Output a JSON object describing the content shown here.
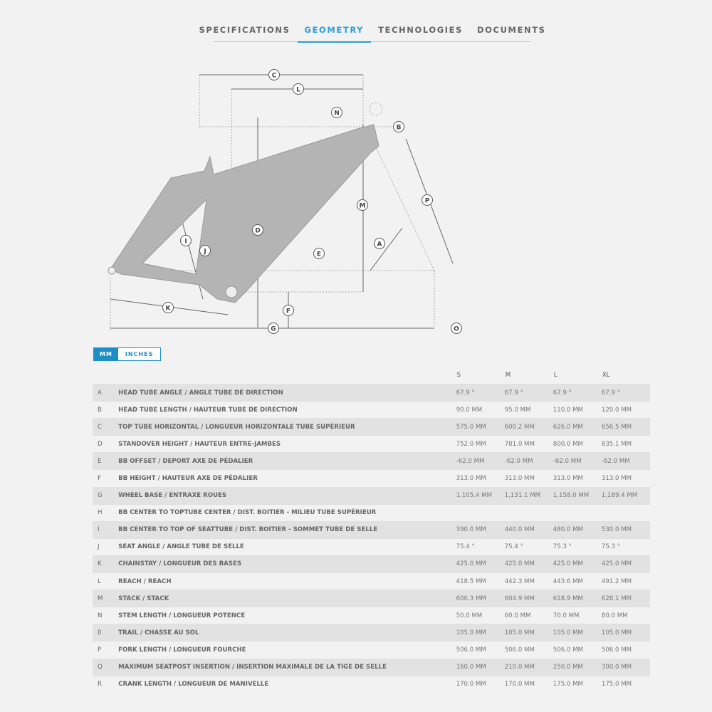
{
  "tabs": [
    {
      "label": "SPECIFICATIONS"
    },
    {
      "label": "GEOMETRY",
      "active": true
    },
    {
      "label": "TECHNOLOGIES"
    },
    {
      "label": "DOCUMENTS"
    }
  ],
  "accent": "#2a9fd6",
  "diagram": {
    "labels": [
      "C",
      "L",
      "N",
      "B",
      "P",
      "M",
      "D",
      "I",
      "J",
      "E",
      "A",
      "K",
      "F",
      "G",
      "O"
    ]
  },
  "units": {
    "mm": "MM",
    "inches": "INCHES",
    "selected": "MM"
  },
  "table": {
    "sizes": [
      "S",
      "M",
      "L",
      "XL"
    ],
    "rows": [
      {
        "letter": "A",
        "name": "HEAD TUBE ANGLE / ANGLE TUBE DE DIRECTION",
        "values": [
          "67.9 °",
          "67.9 °",
          "67.9 °",
          "67.9 °"
        ]
      },
      {
        "letter": "B",
        "name": "HEAD TUBE LENGTH / HAUTEUR TUBE DE DIRECTION",
        "values": [
          "90.0 MM",
          "95.0 MM",
          "110.0 MM",
          "120.0 MM"
        ]
      },
      {
        "letter": "C",
        "name": "TOP TUBE HORIZONTAL / LONGUEUR HORIZONTALE TUBE SUPÉRIEUR",
        "values": [
          "575.0 MM",
          "600.2 MM",
          "626.0 MM",
          "656.5 MM"
        ]
      },
      {
        "letter": "D",
        "name": "STANDOVER HEIGHT / HAUTEUR ENTRE-JAMBES",
        "values": [
          "752.0 MM",
          "781.0 MM",
          "800.0 MM",
          "835.1 MM"
        ]
      },
      {
        "letter": "E",
        "name": "BB OFFSET / DEPORT AXE DE PÉDALIER",
        "values": [
          "-62.0 MM",
          "-62.0 MM",
          "-62.0 MM",
          "-62.0 MM"
        ]
      },
      {
        "letter": "F",
        "name": "BB HEIGHT / HAUTEUR AXE DE PÉDALIER",
        "values": [
          "313.0 MM",
          "313.0 MM",
          "313.0 MM",
          "313.0 MM"
        ]
      },
      {
        "letter": "G",
        "name": "WHEEL BASE / ENTRAXE ROUES",
        "values": [
          "1,105.4 MM",
          "1,131.1 MM",
          "1,158.0 MM",
          "1,189.4 MM"
        ]
      },
      {
        "letter": "H",
        "name": "BB CENTER TO TOPTUBE CENTER / DIST. BOITIER - MILIEU TUBE SUPÉRIEUR",
        "values": [
          "",
          "",
          "",
          ""
        ]
      },
      {
        "letter": "I",
        "name": "BB CENTER TO TOP OF SEATTUBE / DIST. BOITIER - SOMMET TUBE DE SELLE",
        "values": [
          "390.0 MM",
          "440.0 MM",
          "480.0 MM",
          "530.0 MM"
        ]
      },
      {
        "letter": "J",
        "name": "SEAT ANGLE / ANGLE TUBE DE SELLE",
        "values": [
          "75.4 °",
          "75.4 °",
          "75.3 °",
          "75.3 °"
        ]
      },
      {
        "letter": "K",
        "name": "CHAINSTAY / LONGUEUR DES BASES",
        "values": [
          "425.0 MM",
          "425.0 MM",
          "425.0 MM",
          "425.0 MM"
        ]
      },
      {
        "letter": "L",
        "name": "REACH / REACH",
        "values": [
          "418.5 MM",
          "442.3 MM",
          "443.6 MM",
          "491.2 MM"
        ]
      },
      {
        "letter": "M",
        "name": "STACK / STACK",
        "values": [
          "600.3 MM",
          "604.9 MM",
          "618.9 MM",
          "628.1 MM"
        ]
      },
      {
        "letter": "N",
        "name": "STEM LENGTH / LONGUEUR POTENCE",
        "values": [
          "50.0 MM",
          "60.0 MM",
          "70.0 MM",
          "80.0 MM"
        ]
      },
      {
        "letter": "0",
        "name": "TRAIL / CHASSE AU SOL",
        "values": [
          "105.0 MM",
          "105.0 MM",
          "105.0 MM",
          "105.0 MM"
        ]
      },
      {
        "letter": "P",
        "name": "FORK LENGTH / LONGUEUR FOURCHE",
        "values": [
          "506.0 MM",
          "506.0 MM",
          "506.0 MM",
          "506.0 MM"
        ]
      },
      {
        "letter": "Q",
        "name": "MAXIMUM SEATPOST INSERTION / INSERTION MAXIMALE DE LA TIGE DE SELLE",
        "values": [
          "160.0 MM",
          "210.0 MM",
          "250.0 MM",
          "300.0 MM"
        ]
      },
      {
        "letter": "R",
        "name": "CRANK LENGTH / LONGUEUR DE MANIVELLE",
        "values": [
          "170.0 MM",
          "170.0 MM",
          "175.0 MM",
          "175.0 MM"
        ]
      }
    ]
  }
}
